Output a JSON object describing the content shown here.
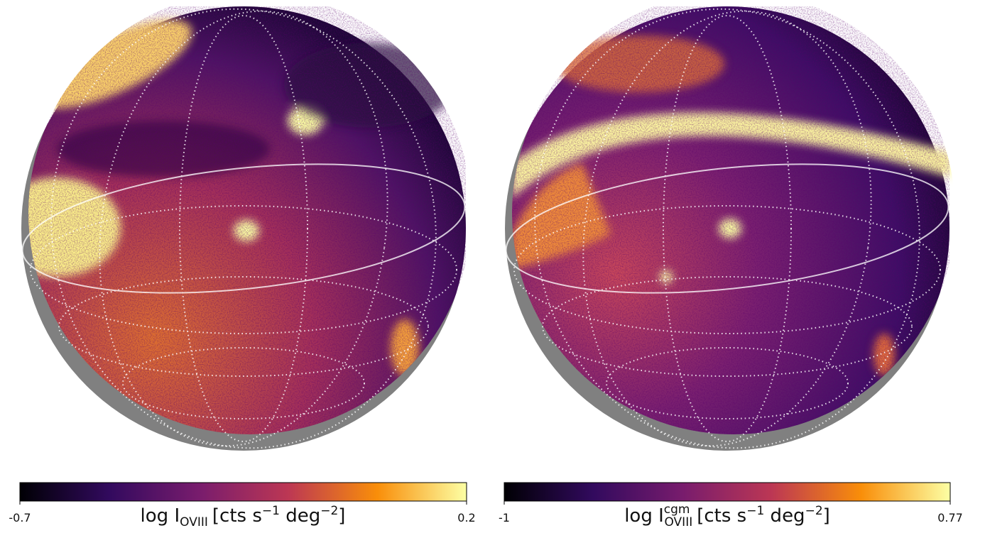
{
  "panels": [
    {
      "colorbar": {
        "min": -0.7,
        "max": 0.2,
        "label": {
          "base": "log I",
          "sub": "OVIII",
          "unit": "[cts s",
          "exp1": "−1",
          "mid": " deg",
          "exp2": "−2",
          "end": "]"
        }
      }
    },
    {
      "colorbar": {
        "min": -1,
        "max": 0.77,
        "label": {
          "base": "log I",
          "sup": "cgm",
          "sub": "OVIII",
          "unit": "[cts s",
          "exp1": "−1",
          "mid": " deg",
          "exp2": "−2",
          "end": "]"
        }
      }
    }
  ]
}
